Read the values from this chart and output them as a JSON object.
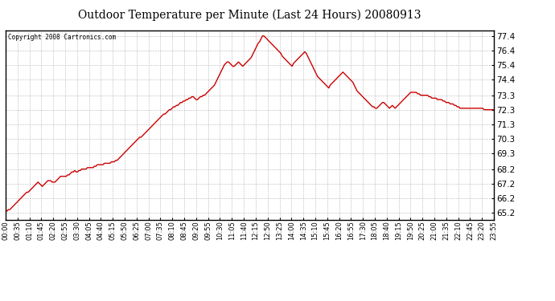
{
  "title": "Outdoor Temperature per Minute (Last 24 Hours) 20080913",
  "copyright": "Copyright 2008 Cartronics.com",
  "line_color": "#cc0000",
  "background_color": "#ffffff",
  "plot_bg_color": "#ffffff",
  "grid_color": "#888888",
  "yticks": [
    65.2,
    66.2,
    67.2,
    68.2,
    69.3,
    70.3,
    71.3,
    72.3,
    73.3,
    74.4,
    75.4,
    76.4,
    77.4
  ],
  "ylim": [
    64.7,
    77.8
  ],
  "xtick_labels": [
    "00:00",
    "00:35",
    "01:10",
    "01:45",
    "02:20",
    "02:55",
    "03:30",
    "04:05",
    "04:40",
    "05:15",
    "05:50",
    "06:25",
    "07:00",
    "07:35",
    "08:10",
    "08:45",
    "09:20",
    "09:55",
    "10:30",
    "11:05",
    "11:40",
    "12:15",
    "12:50",
    "13:25",
    "14:00",
    "14:35",
    "15:10",
    "15:45",
    "16:20",
    "16:55",
    "17:30",
    "18:05",
    "18:40",
    "19:15",
    "19:50",
    "20:25",
    "21:00",
    "21:35",
    "22:10",
    "22:45",
    "23:20",
    "23:55"
  ],
  "xlim": [
    0,
    1435
  ],
  "data_temps": [
    65.3,
    65.3,
    65.4,
    65.4,
    65.5,
    65.6,
    65.7,
    65.8,
    65.9,
    66.0,
    66.1,
    66.2,
    66.3,
    66.4,
    66.5,
    66.6,
    66.6,
    66.7,
    66.8,
    66.9,
    67.0,
    67.1,
    67.2,
    67.3,
    67.2,
    67.1,
    67.0,
    67.1,
    67.2,
    67.3,
    67.4,
    67.4,
    67.4,
    67.3,
    67.3,
    67.3,
    67.4,
    67.5,
    67.6,
    67.7,
    67.7,
    67.7,
    67.7,
    67.7,
    67.8,
    67.8,
    67.9,
    68.0,
    68.0,
    68.1,
    68.0,
    68.0,
    68.1,
    68.1,
    68.2,
    68.2,
    68.2,
    68.2,
    68.3,
    68.3,
    68.3,
    68.3,
    68.3,
    68.4,
    68.4,
    68.5,
    68.5,
    68.5,
    68.5,
    68.5,
    68.6,
    68.6,
    68.6,
    68.6,
    68.6,
    68.7,
    68.7,
    68.7,
    68.8,
    68.8,
    68.9,
    69.0,
    69.1,
    69.2,
    69.3,
    69.4,
    69.5,
    69.6,
    69.7,
    69.8,
    69.9,
    70.0,
    70.1,
    70.2,
    70.3,
    70.4,
    70.4,
    70.5,
    70.6,
    70.7,
    70.8,
    70.9,
    71.0,
    71.1,
    71.2,
    71.3,
    71.4,
    71.5,
    71.6,
    71.7,
    71.8,
    71.9,
    72.0,
    72.0,
    72.1,
    72.2,
    72.3,
    72.3,
    72.4,
    72.5,
    72.5,
    72.6,
    72.6,
    72.7,
    72.8,
    72.8,
    72.9,
    72.9,
    73.0,
    73.0,
    73.1,
    73.1,
    73.2,
    73.2,
    73.1,
    73.0,
    73.0,
    73.1,
    73.2,
    73.2,
    73.3,
    73.3,
    73.4,
    73.5,
    73.6,
    73.7,
    73.8,
    73.9,
    74.0,
    74.2,
    74.4,
    74.6,
    74.8,
    75.0,
    75.2,
    75.4,
    75.5,
    75.6,
    75.6,
    75.5,
    75.4,
    75.3,
    75.3,
    75.4,
    75.5,
    75.6,
    75.5,
    75.4,
    75.3,
    75.4,
    75.5,
    75.6,
    75.7,
    75.8,
    75.9,
    76.1,
    76.3,
    76.5,
    76.7,
    76.9,
    77.0,
    77.2,
    77.4,
    77.4,
    77.3,
    77.2,
    77.1,
    77.0,
    76.9,
    76.8,
    76.7,
    76.6,
    76.5,
    76.4,
    76.3,
    76.2,
    76.0,
    75.9,
    75.8,
    75.7,
    75.6,
    75.5,
    75.4,
    75.3,
    75.5,
    75.6,
    75.7,
    75.8,
    75.9,
    76.0,
    76.1,
    76.2,
    76.3,
    76.2,
    76.0,
    75.8,
    75.6,
    75.4,
    75.2,
    75.0,
    74.8,
    74.6,
    74.5,
    74.4,
    74.3,
    74.2,
    74.1,
    74.0,
    73.9,
    73.8,
    74.0,
    74.1,
    74.2,
    74.3,
    74.4,
    74.5,
    74.6,
    74.7,
    74.8,
    74.9,
    74.8,
    74.7,
    74.6,
    74.5,
    74.4,
    74.3,
    74.2,
    74.0,
    73.8,
    73.6,
    73.5,
    73.4,
    73.3,
    73.2,
    73.1,
    73.0,
    72.9,
    72.8,
    72.7,
    72.6,
    72.5,
    72.5,
    72.4,
    72.4,
    72.5,
    72.6,
    72.7,
    72.8,
    72.8,
    72.7,
    72.6,
    72.5,
    72.4,
    72.5,
    72.6,
    72.5,
    72.4,
    72.5,
    72.6,
    72.7,
    72.8,
    72.9,
    73.0,
    73.1,
    73.2,
    73.3,
    73.4,
    73.5,
    73.5,
    73.5,
    73.5,
    73.5,
    73.4,
    73.4,
    73.3,
    73.3,
    73.3,
    73.3,
    73.3,
    73.3,
    73.2,
    73.2,
    73.1,
    73.1,
    73.1,
    73.1,
    73.0,
    73.0,
    73.0,
    73.0,
    72.9,
    72.9,
    72.8,
    72.8,
    72.8,
    72.7,
    72.7,
    72.7,
    72.6,
    72.6,
    72.5,
    72.5,
    72.4,
    72.4,
    72.4,
    72.4,
    72.4,
    72.4,
    72.4,
    72.4,
    72.4,
    72.4,
    72.4,
    72.4,
    72.4,
    72.4,
    72.4,
    72.4,
    72.4,
    72.3,
    72.3,
    72.3,
    72.3,
    72.3,
    72.3,
    72.3,
    72.3
  ]
}
